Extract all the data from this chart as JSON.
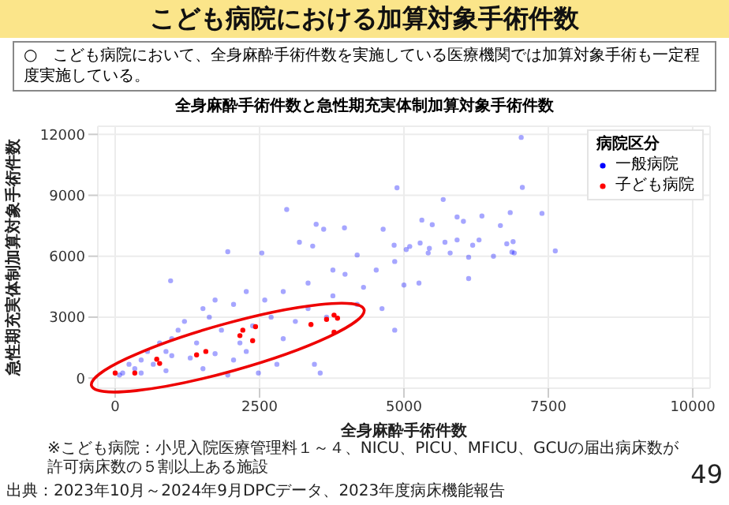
{
  "chart_data": {
    "type": "scatter",
    "title": "こども病院における加算対象手術件数",
    "subtitle": "全身麻酔手術件数と急性期充実体制加算対象手術件数",
    "xlabel": "全身麻酔手術件数",
    "ylabel": "急性期充実体制加算対象手術件数",
    "legend_title": "病院区分",
    "annotations": [
      "○　こども病院において、全身麻酔手術件数を実施している医療機関では加算対象手術も一定程度実施している。",
      "※こども病院：小児入院医療管理料１～４、NICU、PICU、MFICU、GCUの届出病床数が許可病床数の５割以上ある施設",
      "出典：2023年10月～2024年9月DPCデータ、2023年度病床機能報告",
      "49"
    ],
    "xlim": [
      -300,
      10300
    ],
    "ylim": [
      -500,
      12400
    ],
    "xticks": [
      0,
      2500,
      5000,
      7500,
      10000
    ],
    "yticks": [
      0,
      3000,
      6000,
      9000,
      12000
    ],
    "grid": true,
    "legend": "top right",
    "marker": "circle",
    "series": [
      {
        "name": "一般病院",
        "color": "#0000ff",
        "x": [
          7030,
          7050,
          4880,
          5680,
          2970,
          6840,
          7390,
          6350,
          5920,
          3480,
          3970,
          4640,
          5310,
          5490,
          6030,
          6670,
          3610,
          3190,
          3420,
          4830,
          5040,
          5280,
          5440,
          5710,
          5920,
          6190,
          6300,
          6780,
          6890,
          6910,
          7620,
          1950,
          2540,
          960,
          5100,
          5420,
          5800,
          6120,
          6550,
          6870,
          5000,
          6120,
          4190,
          3980,
          4520,
          3340,
          2910,
          2590,
          2050,
          1630,
          1200,
          980,
          560,
          240,
          130,
          450,
          880,
          1520,
          1950,
          2480,
          3450,
          3550,
          4840,
          4620,
          3770,
          3340,
          2700,
          2380,
          1840,
          1410,
          980,
          1300,
          660,
          340,
          75,
          770,
          1730,
          2270,
          2910,
          3120,
          3660,
          4190,
          4300,
          3770,
          4840,
          5260,
          1520,
          1090,
          2050,
          2800,
          2160,
          880,
          450,
          1730,
          2270
        ],
        "values": [
          11850,
          9390,
          9370,
          8790,
          8300,
          8150,
          8110,
          7980,
          7930,
          7570,
          7400,
          7330,
          7780,
          7550,
          7720,
          7510,
          7330,
          6690,
          6500,
          6540,
          6330,
          6650,
          6390,
          6690,
          6800,
          6540,
          6800,
          6610,
          6720,
          6160,
          6260,
          6220,
          6160,
          4790,
          6480,
          6160,
          6160,
          5950,
          6000,
          6200,
          4580,
          4900,
          6060,
          5110,
          5320,
          4680,
          4260,
          3840,
          3630,
          3000,
          2790,
          1940,
          1310,
          680,
          250,
          250,
          360,
          460,
          150,
          250,
          680,
          250,
          2360,
          3420,
          4050,
          3420,
          3000,
          2570,
          2360,
          1730,
          1100,
          990,
          680,
          460,
          150,
          1730,
          1200,
          1310,
          1940,
          2790,
          3000,
          3630,
          4470,
          5320,
          5740,
          4680,
          3420,
          2360,
          890,
          680,
          1730,
          1310,
          890,
          3840,
          4260
        ]
      },
      {
        "name": "子ども病院",
        "color": "#ff0000",
        "x": [
          0,
          340,
          720,
          770,
          1410,
          1570,
          2160,
          2210,
          2380,
          2430,
          3390,
          3660,
          3790,
          3850,
          3790
        ],
        "values": [
          250,
          250,
          930,
          720,
          1140,
          1310,
          2090,
          2360,
          1840,
          2530,
          2640,
          2890,
          3100,
          2950,
          2260
        ]
      }
    ]
  }
}
